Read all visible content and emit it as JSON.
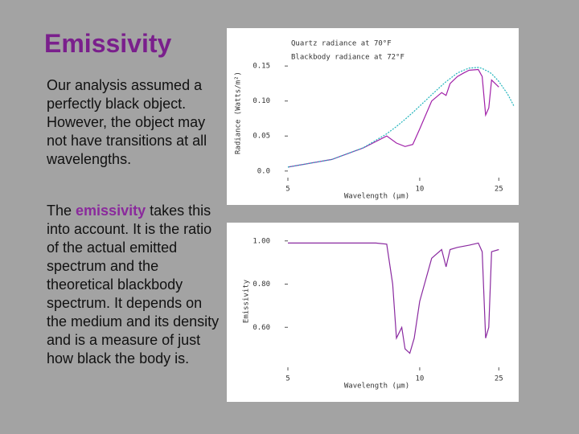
{
  "slide": {
    "title": "Emissivity",
    "paragraphs": [
      {
        "text": "Our analysis assumed a perfectly black object. However, the object may not have transitions at all wavelengths."
      },
      {
        "before": "The ",
        "highlight": "emissivity",
        "after": " takes this into account. It is the ratio of the actual emitted spectrum and the theoretical blackbody spectrum. It depends on the medium and its density and is a measure of just how black the body is."
      }
    ]
  },
  "chart_data": [
    {
      "type": "line",
      "xlabel": "Wavelength (μm)",
      "ylabel": "Radiance (Watts/m²)",
      "x_scale": "reciprocal",
      "x": [
        5,
        6,
        7,
        8,
        8.5,
        9,
        9.5,
        10,
        11,
        12,
        12.5,
        13,
        14,
        15,
        16,
        18,
        19,
        20,
        21,
        22,
        25,
        30,
        35
      ],
      "series": [
        {
          "name": "Quartz radiance at 70°F",
          "color": "#a020a8",
          "values": [
            0.0056,
            0.0165,
            0.033,
            0.05,
            0.04,
            0.035,
            0.038,
            0.06,
            0.1,
            0.112,
            0.108,
            0.125,
            0.135,
            0.14,
            0.144,
            0.145,
            0.135,
            0.08,
            0.09,
            0.13,
            0.12,
            null,
            null
          ]
        },
        {
          "name": "Blackbody radiance at 72°F",
          "color": "#20b4bc",
          "values": [
            0.0056,
            0.0165,
            0.0332,
            0.0532,
            0.0636,
            0.0738,
            0.0836,
            0.0928,
            0.109,
            0.122,
            0.1277,
            0.132,
            0.14,
            0.144,
            0.147,
            0.148,
            0.1465,
            0.144,
            0.1418,
            0.139,
            0.128,
            0.11,
            0.093
          ]
        }
      ],
      "xlim": [
        5,
        35
      ],
      "xticks": [
        5,
        10,
        25
      ],
      "ylim": [
        -0.014,
        0.18
      ],
      "yticks": [
        {
          "value": 0,
          "label": "0.0"
        },
        0.05,
        {
          "value": 0.1,
          "label": "0.10"
        },
        0.15
      ]
    },
    {
      "type": "line",
      "xlabel": "Wavelength (μm)",
      "ylabel": "Emissivity",
      "x_scale": "reciprocal",
      "x": [
        5,
        6,
        7,
        7.5,
        8,
        8.3,
        8.5,
        8.8,
        9,
        9.3,
        9.6,
        10,
        11,
        12,
        12.5,
        13,
        14,
        16,
        18,
        19,
        20,
        21,
        22,
        25
      ],
      "series": [
        {
          "name": "Emissivity",
          "color": "#8a2aa0",
          "values": [
            0.99,
            0.99,
            0.99,
            0.99,
            0.985,
            0.8,
            0.55,
            0.6,
            0.5,
            0.48,
            0.55,
            0.72,
            0.92,
            0.96,
            0.88,
            0.96,
            0.97,
            0.98,
            0.99,
            0.95,
            0.55,
            0.6,
            0.95,
            0.96
          ]
        }
      ],
      "xlim": [
        5,
        35
      ],
      "xticks": [
        5,
        10,
        25
      ],
      "ylim": [
        0.4,
        1.04
      ],
      "yticks": [
        {
          "value": 1,
          "label": "1.00"
        },
        {
          "value": 0.8,
          "label": "0.80"
        },
        {
          "value": 0.6,
          "label": "0.60"
        }
      ]
    }
  ]
}
